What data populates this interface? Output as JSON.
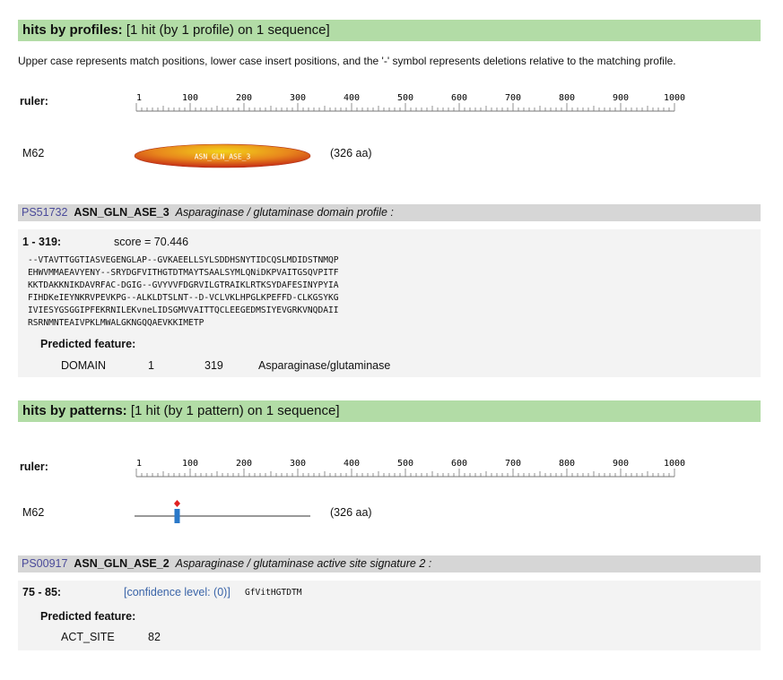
{
  "profiles": {
    "heading": "hits by profiles:",
    "summary": "[1 hit (by 1 profile) on 1 sequence]",
    "note": "Upper case represents match positions, lower case insert positions, and the '-' symbol represents deletions relative to the matching profile.",
    "ruler": {
      "label": "ruler:",
      "ticks": [
        "1",
        "100",
        "200",
        "300",
        "400",
        "500",
        "600",
        "700",
        "800",
        "900",
        "1000"
      ]
    },
    "sequence": {
      "name": "M62",
      "domain": "ASN_GLN_ASE_3",
      "length": "(326 aa)"
    },
    "hit": {
      "accession": "PS51732",
      "name": "ASN_GLN_ASE_3",
      "description": "Asparaginase / glutaminase domain profile :",
      "range": "1 - 319:",
      "score": "score = 70.446",
      "alignment": [
        "--VTAVTTGGTIASVEGENGLAP--GVKAEELLSYLSDDHSNYTIDCQSLMDIDSTNMQP",
        "EHWVMMAEAVYENY--SRYDGFVITHGTDTMAYTSAALSYMLQNiDKPVAITGSQVPITF",
        "KKTDAKKNIKDAVRFAC-DGIG--GVYVVFDGRVILGTRAIKLRTKSYDAFESINYPYIA",
        "FIHDKeIEYNKRVPEVKPG--ALKLDTSLNT--D-VCLVKLHPGLKPEFFD-CLKGSYKG",
        "IVIESYGSGGIPFEKRNILEKvneLIDSGMVVAITTQCLEEGEDMSIYEVGRKVNQDAII",
        "RSRNMNTEAIVPKLMWALGKNGQQAEVKKIMETP"
      ],
      "feature_heading": "Predicted feature:",
      "feature": [
        "DOMAIN",
        "1",
        "319",
        "Asparaginase/glutaminase"
      ]
    }
  },
  "patterns": {
    "heading": "hits by patterns:",
    "summary": "[1 hit (by 1 pattern) on 1 sequence]",
    "ruler": {
      "label": "ruler:",
      "ticks": [
        "1",
        "100",
        "200",
        "300",
        "400",
        "500",
        "600",
        "700",
        "800",
        "900",
        "1000"
      ]
    },
    "sequence": {
      "name": "M62",
      "length": "(326 aa)"
    },
    "hit": {
      "accession": "PS00917",
      "name": "ASN_GLN_ASE_2",
      "description": "Asparaginase / glutaminase active site signature 2 :",
      "range": "75 - 85:",
      "confidence": "[confidence level: (0)]",
      "match": "GfVitHGTDTM",
      "feature_heading": "Predicted feature:",
      "feature": [
        "ACT_SITE",
        "82"
      ]
    }
  }
}
